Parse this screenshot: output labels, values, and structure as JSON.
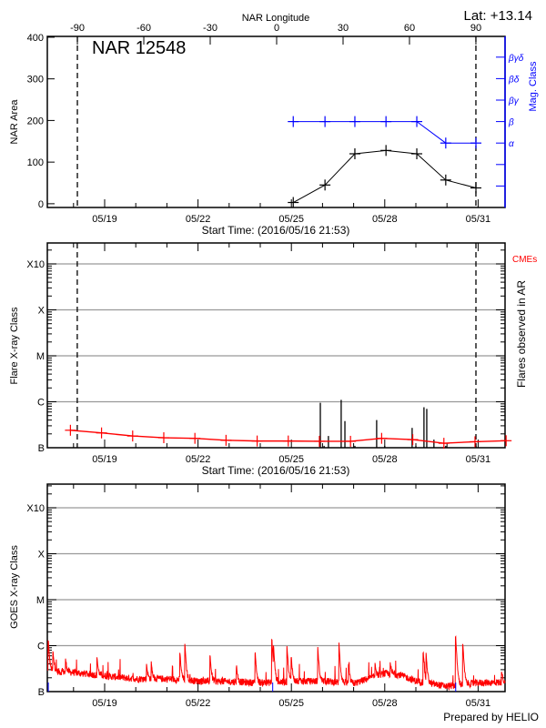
{
  "header": {
    "lat_label": "Lat: +13.14",
    "footer": "Prepared by HELIO"
  },
  "colors": {
    "area": "#000000",
    "mag_class": "#0000ff",
    "flare_level": "#ff0000",
    "flares": "#000000",
    "goes": "#ff0000",
    "cme_label": "#ff0000",
    "grid": "#999999"
  },
  "chart_data": [
    {
      "type": "line",
      "title": "NAR 12548",
      "top_axis_label": "NAR Longitude",
      "top_ticks": [
        -90,
        -60,
        -30,
        0,
        30,
        60,
        90
      ],
      "top_tick_labels": [
        "-90",
        "-60",
        "-30",
        "0",
        "30",
        "60",
        "90"
      ],
      "xlabel": "Start Time: (2016/05/16 21:53)",
      "x_ticks_day_of_may": [
        19,
        22,
        25,
        28,
        31
      ],
      "x_tick_labels": [
        "05/19",
        "05/22",
        "05/25",
        "05/28",
        "05/31"
      ],
      "xlim_day_of_may": [
        17.16,
        31.87
      ],
      "ylabel": "NAR Area",
      "ylim": [
        -9,
        402
      ],
      "yticks": [
        0,
        100,
        200,
        300,
        400
      ],
      "ytick_labels": [
        "0",
        "100",
        "200",
        "300",
        "400"
      ],
      "y2label": "Mag. Class",
      "y2_classes": [
        "",
        "",
        "α",
        "β",
        "βγ",
        "βδ",
        "βγδ"
      ],
      "dashed_lines_longitude": [
        -90,
        90
      ],
      "grid": false,
      "series": [
        {
          "kind": "area",
          "x_day_of_may": [
            25.06,
            26.08,
            27.04,
            28.04,
            29.03,
            29.96,
            30.93
          ],
          "y": [
            3,
            45,
            120,
            128,
            120,
            57,
            38
          ]
        },
        {
          "kind": "mag_class",
          "x_day_of_may": [
            25.06,
            26.08,
            27.04,
            28.04,
            29.03,
            29.96,
            30.93
          ],
          "y": [
            "β",
            "β",
            "β",
            "β",
            "β",
            "α",
            "α"
          ]
        }
      ]
    },
    {
      "type": "line",
      "ylabel": "Flare X-ray Class",
      "y2label": "Flares observed in AR",
      "legend": "CMEs",
      "xlabel": "Start Time: (2016/05/16 21:53)",
      "x_ticks_day_of_may": [
        19,
        22,
        25,
        28,
        31
      ],
      "x_tick_labels": [
        "05/19",
        "05/22",
        "05/25",
        "05/28",
        "05/31"
      ],
      "xlim_day_of_may": [
        17.16,
        31.87
      ],
      "yscale": "log",
      "ylim_flux": [
        1e-07,
        0.0029
      ],
      "yticks_flux": [
        1e-07,
        1e-06,
        1e-05,
        0.0001,
        0.001
      ],
      "ytick_labels": [
        "B",
        "C",
        "M",
        "X",
        "X10"
      ],
      "dashed_lines_day_of_may": [
        18.12,
        30.93
      ],
      "grid": true,
      "series": [
        {
          "kind": "flare_level",
          "x_day_of_may": [
            17.9,
            18.9,
            19.9,
            20.9,
            21.9,
            22.9,
            23.9,
            24.9,
            25.9,
            26.9,
            27.9,
            28.9,
            29.9,
            30.9,
            31.9
          ],
          "y_flux": [
            2.4e-07,
            2.1e-07,
            1.8e-07,
            1.65e-07,
            1.6e-07,
            1.45e-07,
            1.4e-07,
            1.4e-07,
            1.38e-07,
            1.38e-07,
            1.6e-07,
            1.5e-07,
            1.25e-07,
            1.35e-07,
            1.42e-07
          ]
        },
        {
          "kind": "flares",
          "x_day_of_may": [
            25.93,
            26.05,
            26.19,
            26.6,
            26.72,
            27.04,
            27.74,
            28.0,
            28.88,
            29.0,
            29.26,
            29.35,
            29.58,
            29.96,
            30.93
          ],
          "y_flux": [
            9.5e-07,
            1.1e-07,
            1.8e-07,
            1.1e-06,
            3.8e-07,
            1.1e-07,
            4e-07,
            1.1e-07,
            2.7e-07,
            1.1e-07,
            7.6e-07,
            7e-07,
            1.5e-07,
            1.1e-07,
            1.1e-07
          ]
        }
      ]
    },
    {
      "type": "line",
      "ylabel": "GOES X-ray Class",
      "x_ticks_day_of_may": [
        19,
        22,
        25,
        28,
        31
      ],
      "x_tick_labels": [
        "05/19",
        "05/22",
        "05/25",
        "05/28",
        "05/31"
      ],
      "xlim_day_of_may": [
        17.16,
        31.87
      ],
      "yscale": "log",
      "ylim_flux": [
        1e-07,
        0.0029
      ],
      "yticks_flux": [
        1e-07,
        1e-06,
        1e-05,
        0.0001,
        0.001
      ],
      "ytick_labels": [
        "B",
        "C",
        "M",
        "X",
        "X10"
      ],
      "grid": true,
      "series": [
        {
          "kind": "goes_baseline",
          "x_day_of_may": [
            17.16,
            18.0,
            19.0,
            20.0,
            21.0,
            22.0,
            23.0,
            24.0,
            25.0,
            26.0,
            27.0,
            28.0,
            28.5,
            29.0,
            30.0,
            31.0,
            31.87
          ],
          "y_flux": [
            2.8e-07,
            2.6e-07,
            2.2e-07,
            1.9e-07,
            1.9e-07,
            1.7e-07,
            1.65e-07,
            1.55e-07,
            1.65e-07,
            1.7e-07,
            1.5e-07,
            2.5e-07,
            2.3e-07,
            1.7e-07,
            1.3e-07,
            1.55e-07,
            1.6e-07
          ]
        },
        {
          "kind": "goes_flares",
          "x_day_of_may": [
            17.19,
            17.34,
            17.75,
            18.76,
            20.35,
            20.5,
            21.42,
            21.58,
            22.39,
            23.24,
            23.84,
            24.375,
            24.43,
            24.86,
            25.0,
            25.85,
            26.53,
            26.84,
            27.69,
            28.18,
            29.24,
            29.33,
            30.28,
            30.51,
            31.76
          ],
          "y_flux": [
            1.3e-06,
            7.4e-07,
            4.9e-07,
            5.2e-07,
            3.9e-07,
            4.2e-07,
            7.1e-07,
            1.06e-06,
            6e-07,
            3.5e-07,
            6.9e-07,
            1.35e-06,
            7.5e-07,
            9.7e-07,
            5.5e-07,
            9.1e-07,
            1.15e-06,
            3.8e-07,
            4.3e-07,
            3.9e-07,
            7.1e-07,
            6.5e-07,
            1.56e-06,
            1.1e-06,
            2.8e-07
          ]
        },
        {
          "kind": "event_markers",
          "x_day_of_may": [
            17.19,
            24.4,
            30.28
          ]
        }
      ]
    }
  ]
}
